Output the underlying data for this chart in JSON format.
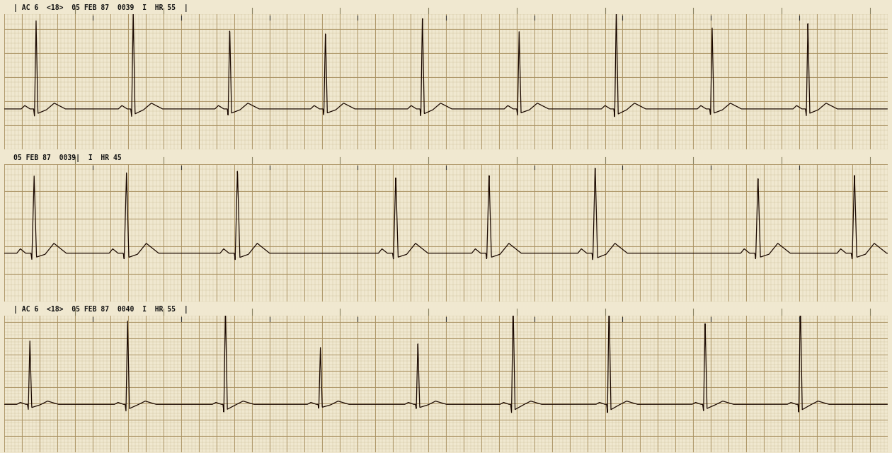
{
  "bg_color": "#f0e8d0",
  "grid_minor_color": "#c8b890",
  "grid_major_color": "#a89060",
  "ecg_color": "#1a0800",
  "header_bg": "#e0d8c0",
  "header_line_color": "#888060",
  "strip1_header": "| AC 6  <18>  05 FEB 87  0039  I  HR 55  |",
  "strip2_header": "05 FEB 87  0039|  I  HR 45",
  "strip3_header": "| AC 6  <18>  05 FEB 87  0040  I  HR 55  |",
  "duration": 10.0,
  "minor_step": 0.04,
  "major_step": 0.2,
  "minor_step_v": 0.04,
  "major_step_v": 0.2
}
